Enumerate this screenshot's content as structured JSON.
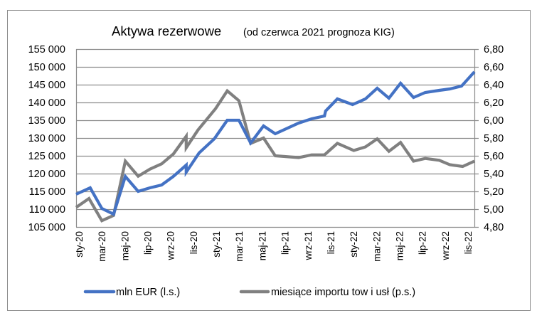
{
  "chart_data": {
    "type": "line",
    "title": "Aktywa rezerwowe",
    "subtitle": "(od czerwca 2021 prognoza KIG)",
    "x_unit": "month index (0 = sty-20)",
    "x_tick_labels": [
      "sty-20",
      "mar-20",
      "maj-20",
      "lip-20",
      "wrz-20",
      "lis-20",
      "sty-21",
      "mar-21",
      "maj-21",
      "lip-21",
      "wrz-21",
      "lis-21",
      "sty-22",
      "mar-22",
      "maj-22",
      "lip-22",
      "wrz-22",
      "lis-22"
    ],
    "x_range": [
      0,
      34
    ],
    "y_left": {
      "ticks": [
        "155 000",
        "150 000",
        "145 000",
        "140 000",
        "135 000",
        "130 000",
        "125 000",
        "120 000",
        "115 000",
        "110 000",
        "105 000"
      ],
      "ylim": [
        105000,
        155000
      ]
    },
    "y_right": {
      "ticks": [
        "6,80",
        "6,60",
        "6,40",
        "6,20",
        "6,00",
        "5,80",
        "5,60",
        "5,40",
        "5,20",
        "5,00",
        "4,80"
      ],
      "ylim": [
        4.8,
        6.8
      ]
    },
    "grid": true,
    "legend_position": "bottom",
    "series": [
      {
        "name": "mln EUR (l.s.)",
        "axis": "left",
        "color": "#4472C4",
        "x": [
          0,
          1.2,
          2.2,
          3.2,
          4.2,
          5.3,
          6.3,
          7.3,
          8.3,
          9.4,
          9.4,
          10.5,
          11.8,
          12.9,
          13.9,
          14.9,
          16.0,
          17.0,
          19.0,
          20.1,
          21.2,
          21.3,
          22.3,
          23.6,
          24.7,
          25.7,
          26.7,
          27.7,
          28.8,
          29.8,
          31.0,
          31.9,
          32.9,
          34.0
        ],
        "y": [
          114200,
          116000,
          110200,
          108600,
          119200,
          115000,
          116000,
          116800,
          119200,
          122400,
          120400,
          125800,
          129800,
          135000,
          135000,
          128600,
          133400,
          131200,
          134200,
          135400,
          136200,
          137600,
          141000,
          139400,
          141000,
          144000,
          141200,
          145400,
          141400,
          142800,
          143400,
          143800,
          144600,
          148600
        ]
      },
      {
        "name": "miesiące importu tow i usł (p.s.)",
        "axis": "right",
        "color": "#808080",
        "x": [
          0,
          1.1,
          2.2,
          3.2,
          4.2,
          5.3,
          6.3,
          7.3,
          8.3,
          9.4,
          9.4,
          10.4,
          11.9,
          12.9,
          13.9,
          14.9,
          16.0,
          17.0,
          19.0,
          20.1,
          21.2,
          22.3,
          23.7,
          24.7,
          25.7,
          26.7,
          27.7,
          28.8,
          29.8,
          31.0,
          31.9,
          33.0,
          34.0
        ],
        "y": [
          5.02,
          5.12,
          4.87,
          4.93,
          5.54,
          5.37,
          5.45,
          5.51,
          5.62,
          5.82,
          5.69,
          5.89,
          6.13,
          6.33,
          6.22,
          5.74,
          5.8,
          5.6,
          5.58,
          5.61,
          5.61,
          5.74,
          5.66,
          5.7,
          5.79,
          5.65,
          5.75,
          5.54,
          5.57,
          5.55,
          5.5,
          5.48,
          5.54
        ]
      }
    ]
  }
}
